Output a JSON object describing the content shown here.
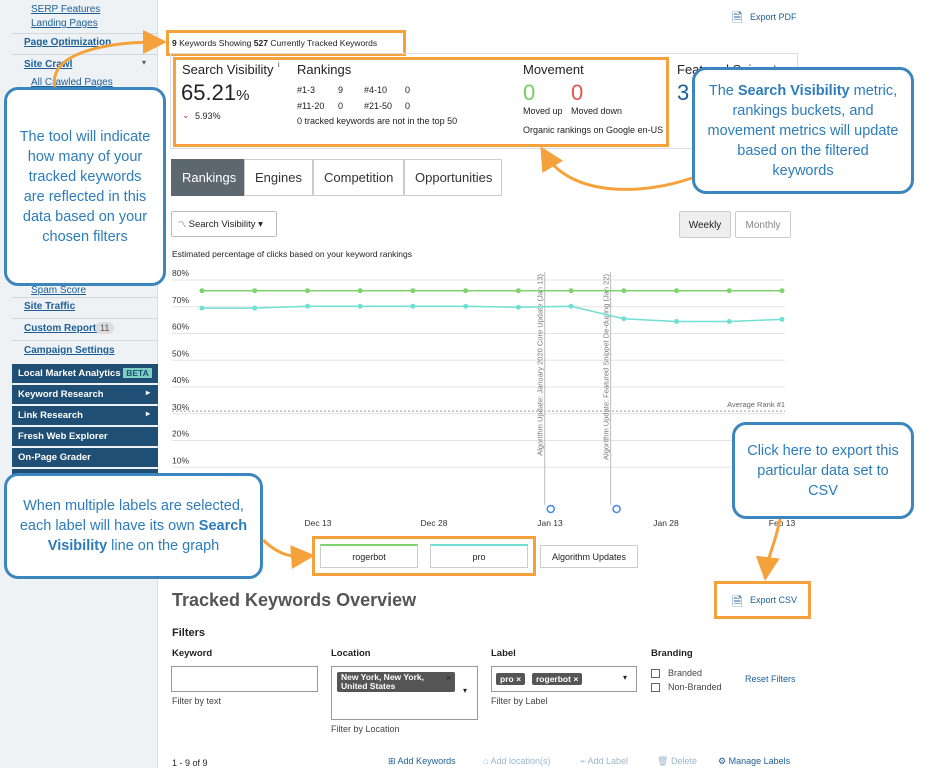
{
  "sidebar": {
    "items": [
      "SERP Features",
      "Landing Pages",
      "Page Optimization",
      "Site Crawl",
      "All Crawled Pages",
      "Spam Score",
      "Site Traffic",
      "Custom Reports",
      "Campaign Settings"
    ],
    "custom_reports_count": "11",
    "tools": [
      "Local Market Analytics",
      "Keyword Research",
      "Link Research",
      "Fresh Web Explorer",
      "On-Page Grader"
    ],
    "beta_badge": "BETA"
  },
  "header": {
    "export_pdf": "Export PDF",
    "keywords_showing": "9",
    "showing_text": "Keywords Showing",
    "tracked": "527",
    "tracked_text": "Currently Tracked Keywords"
  },
  "metrics": {
    "search_visibility": {
      "title": "Search Visibility",
      "info": "i",
      "value": "65.21",
      "unit": "%",
      "change": "5.93%"
    },
    "rankings": {
      "title": "Rankings",
      "buckets": [
        {
          "label": "#1-3",
          "count": "9"
        },
        {
          "label": "#4-10",
          "count": "0"
        },
        {
          "label": "#11-20",
          "count": "0"
        },
        {
          "label": "#21-50",
          "count": "0"
        }
      ],
      "note": "0 tracked keywords are not in the top 50"
    },
    "movement": {
      "title": "Movement",
      "up": "0",
      "up_label": "Moved up",
      "down": "0",
      "down_label": "Moved down",
      "note": "Organic rankings on Google en-US"
    },
    "featured_snippets": {
      "title": "Featured Snippets",
      "value": "3"
    }
  },
  "tabs": [
    "Rankings",
    "Engines",
    "Competition",
    "Opportunities"
  ],
  "chart_controls": {
    "metric": "Search Visibility",
    "weekly": "Weekly",
    "monthly": "Monthly",
    "description": "Estimated percentage of clicks based on your keyword rankings"
  },
  "chart": {
    "type": "line",
    "x_labels": [
      "Dec 13",
      "Dec 28",
      "Jan 13",
      "Jan 28",
      "Feb 13"
    ],
    "ylim": [
      0,
      80
    ],
    "yticks": [
      {
        "value": 10,
        "label": "10%"
      },
      {
        "value": 20,
        "label": "20%"
      },
      {
        "value": 30,
        "label": "30%"
      },
      {
        "value": 40,
        "label": "40%"
      },
      {
        "value": 50,
        "label": "50%"
      },
      {
        "value": 60,
        "label": "60%"
      },
      {
        "value": 70,
        "label": "70%"
      },
      {
        "value": 80,
        "label": "80%"
      }
    ],
    "series": [
      {
        "name": "rogerbot",
        "color": "#7dd46e",
        "values": [
          76,
          76,
          76,
          76,
          76,
          76,
          76,
          76,
          76,
          76,
          76,
          76
        ]
      },
      {
        "name": "pro",
        "color": "#6fe0d3",
        "values": [
          69.5,
          69.5,
          70.2,
          70.2,
          70.2,
          70.2,
          69.8,
          70.2,
          65.5,
          64.5,
          64.5,
          65.3
        ]
      }
    ],
    "legend_extra": "Algorithm Updates",
    "algorithm_updates": [
      {
        "x": 6.5,
        "label": "Algorithm Update: January 2020 Core Update (Jan 13)"
      },
      {
        "x": 7.75,
        "label": "Algorithm Update: Featured Snippet De-duping (Jan 22)"
      }
    ],
    "reference_lines": [
      {
        "value": 31,
        "label": "Average Rank #1"
      }
    ]
  },
  "overview": {
    "title": "Tracked Keywords Overview",
    "export_csv": "Export CSV",
    "filters_title": "Filters",
    "keyword": {
      "label": "Keyword",
      "hint": "Filter by text"
    },
    "location": {
      "label": "Location",
      "chip": "New York, New York, United States",
      "hint": "Filter by Location"
    },
    "label": {
      "label": "Label",
      "chips": [
        "pro",
        "rogerbot"
      ],
      "hint": "Filter by Label"
    },
    "branding": {
      "label": "Branding",
      "options": [
        "Branded",
        "Non-Branded"
      ]
    },
    "reset": "Reset Filters",
    "count": "1 - 9 of 9",
    "actions": [
      "Add Keywords",
      "Add location(s)",
      "Add Label",
      "Delete",
      "Manage Labels"
    ]
  },
  "callouts": [
    {
      "parts": [
        "The tool will indicate how many of your tracked keywords are reflected in this data based on your chosen filters"
      ]
    },
    {
      "parts": [
        "The ",
        "Search Visibility",
        " metric, rankings buckets, and movement metrics will update based on the filtered keywords"
      ]
    },
    {
      "parts": [
        "Click here to export this particular data set to CSV"
      ]
    },
    {
      "parts": [
        "When multiple labels are selected, each label will have its own ",
        "Search Visibility",
        " line on the graph"
      ]
    }
  ]
}
